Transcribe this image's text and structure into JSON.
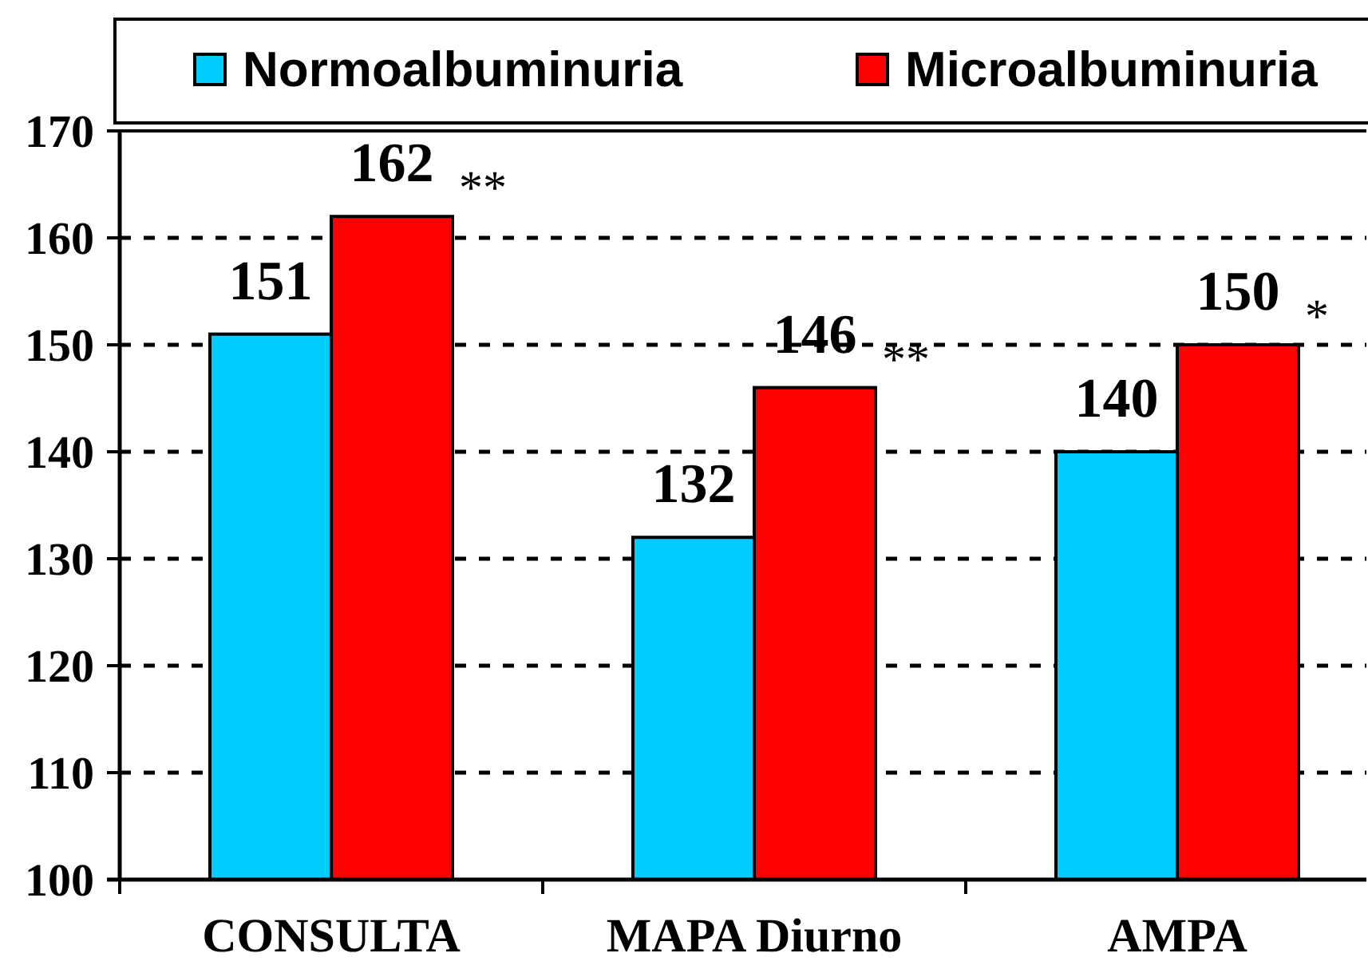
{
  "chart_data": {
    "type": "bar",
    "categories": [
      "CONSULTA",
      "MAPA Diurno",
      "AMPA"
    ],
    "series": [
      {
        "name": "Normoalbuminuria",
        "color": "#00ccff",
        "values": [
          151,
          132,
          140
        ]
      },
      {
        "name": "Microalbuminuria",
        "color": "#ff0000",
        "values": [
          162,
          146,
          150
        ]
      }
    ],
    "ylim": [
      100,
      170
    ],
    "yticks": [
      100,
      110,
      120,
      130,
      140,
      150,
      160,
      170
    ],
    "grid": "y",
    "legend": "top",
    "data_labels": true,
    "annotations": [
      "**",
      "**",
      "*"
    ]
  }
}
